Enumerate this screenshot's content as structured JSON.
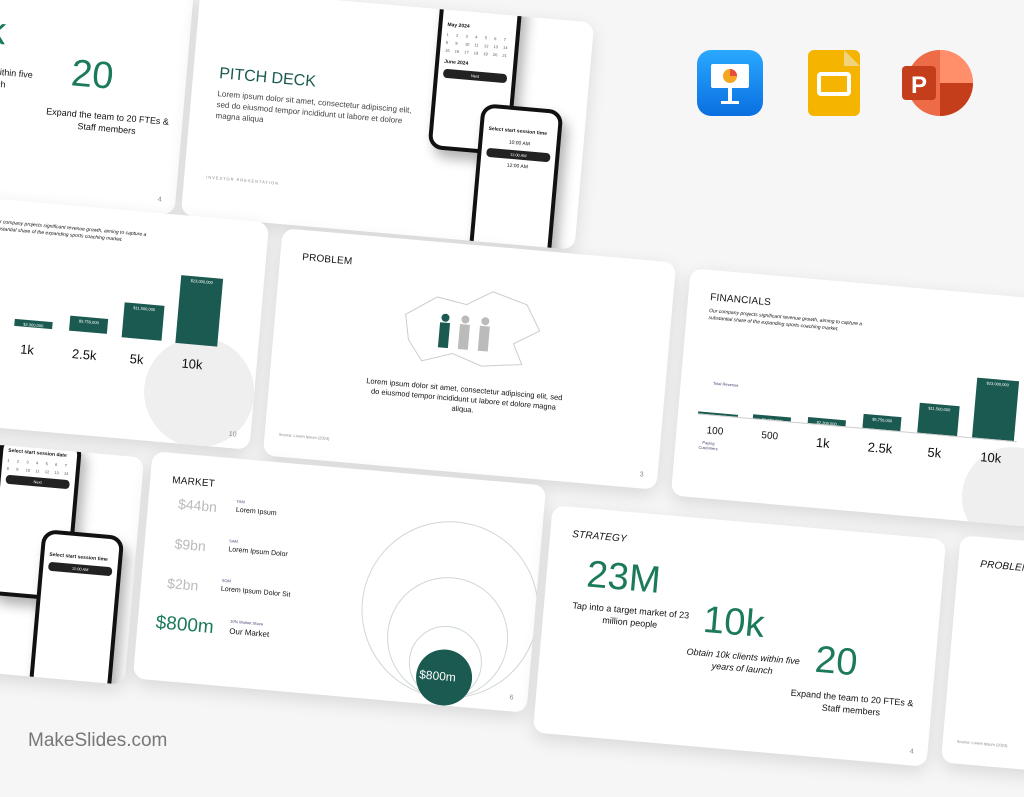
{
  "brand": "MakeSlides.com",
  "apps": [
    {
      "name": "Keynote",
      "color": "#1a8cff"
    },
    {
      "name": "Google Slides",
      "color": "#f4b400"
    },
    {
      "name": "PowerPoint",
      "color": "#d24726"
    }
  ],
  "colors": {
    "accent": "#1a7a5a",
    "bar": "#1b5a50"
  },
  "strategy": {
    "title": "STRATEGY",
    "stats": [
      {
        "value": "23M",
        "caption": "Tap into a target market of 23 million people"
      },
      {
        "value": "10k",
        "caption": "Obtain 10k clients within five years of launch"
      },
      {
        "value": "20",
        "caption": "Expand the team to 20 FTEs & Staff members"
      }
    ],
    "page": "4"
  },
  "pitch": {
    "title": "PITCH DECK",
    "body": "Lorem ipsum dolor sit amet, consectetur adipiscing elit, sed do eiusmod tempor incididunt ut labore et dolore magna aliqua",
    "footer": "INVESTOR PRESENTATION",
    "phone1_title": "Select start session date",
    "phone1_month": "May 2024",
    "phone1_month2": "June 2024",
    "phone1_btn": "Next",
    "phone2_title": "Select start session time",
    "phone2_slots": [
      "10:00 AM",
      "11:00 AM",
      "12:00 AM"
    ]
  },
  "financials": {
    "title": "FINANCIALS",
    "body": "Our company projects significant revenue growth, aiming to capture a substantial share of the expanding sports coaching market.",
    "revenue_label": "Total Revenue",
    "customers_label": "Paying Customers",
    "chart_data": {
      "type": "bar",
      "categories": [
        "100",
        "500",
        "1k",
        "2.5k",
        "5k",
        "10k"
      ],
      "values": [
        230000,
        1150000,
        2300000,
        5750000,
        11500000,
        23000000
      ],
      "labels": [
        "",
        "$1,150,000",
        "$2,300,000",
        "$5,750,000",
        "$11,500,000",
        "$23,000,000"
      ]
    },
    "page": "10"
  },
  "problem": {
    "title": "PROBLEM",
    "body": "Lorem ipsum dolor sit amet, consectetur adipiscing elit, sed do eiusmod tempor incididunt ut labore et dolore magna aliqua.",
    "source": "Source: Lorem Ipsum (2024)",
    "page": "3"
  },
  "market": {
    "title": "MARKET",
    "rows": [
      {
        "value": "$44bn",
        "tag": "TAM",
        "label": "Lorem Ipsum"
      },
      {
        "value": "$9bn",
        "tag": "SAM",
        "label": "Lorem Ipsum Dolor"
      },
      {
        "value": "$2bn",
        "tag": "SOM",
        "label": "Lorem Ipsum Dolor Sit"
      },
      {
        "value": "$800m",
        "tag": "10% Market Share",
        "label": "Our Market"
      }
    ],
    "bubble": "$800m",
    "page": "6"
  }
}
